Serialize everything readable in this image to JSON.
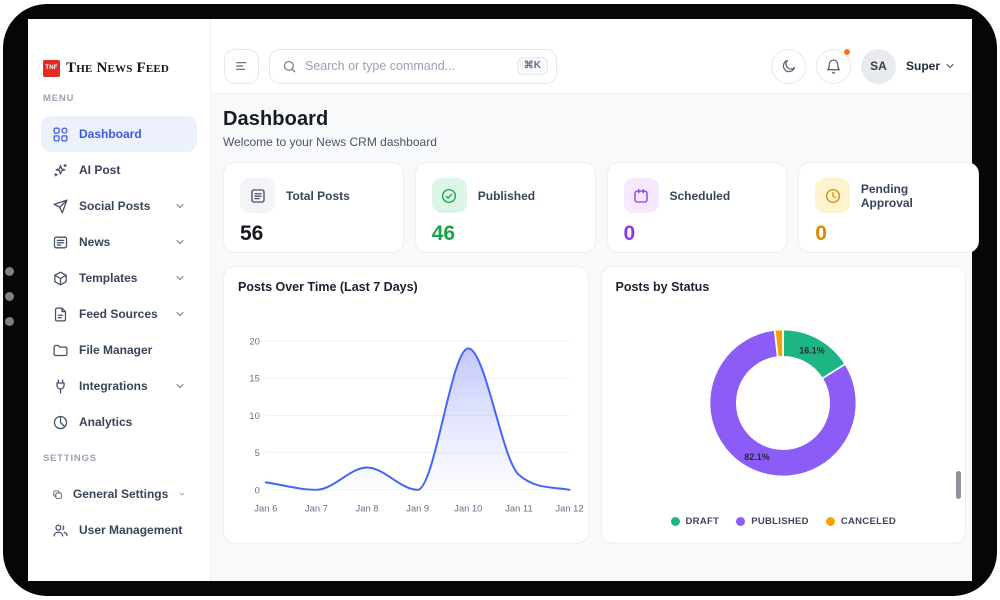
{
  "sidebar": {
    "logo": {
      "badge": "TNF",
      "title": "The News Feed"
    },
    "sections": [
      {
        "label": "MENU",
        "items": [
          {
            "label": "Dashboard",
            "icon": "grid",
            "active": true,
            "chevron": false
          },
          {
            "label": "AI Post",
            "icon": "sparkles",
            "active": false,
            "chevron": false
          },
          {
            "label": "Social Posts",
            "icon": "send",
            "active": false,
            "chevron": true
          },
          {
            "label": "News",
            "icon": "news",
            "active": false,
            "chevron": true
          },
          {
            "label": "Templates",
            "icon": "cube",
            "active": false,
            "chevron": true
          },
          {
            "label": "Feed Sources",
            "icon": "file",
            "active": false,
            "chevron": true
          },
          {
            "label": "File Manager",
            "icon": "folder",
            "active": false,
            "chevron": false
          },
          {
            "label": "Integrations",
            "icon": "plug",
            "active": false,
            "chevron": true
          },
          {
            "label": "Analytics",
            "icon": "pie",
            "active": false,
            "chevron": false
          }
        ]
      },
      {
        "label": "SETTINGS",
        "items": [
          {
            "label": "General Settings",
            "icon": "copy",
            "active": false,
            "chevron": true
          },
          {
            "label": "User Management",
            "icon": "users",
            "active": false,
            "chevron": false
          }
        ]
      }
    ]
  },
  "topbar": {
    "search_placeholder": "Search or type command...",
    "shortcut": "⌘K",
    "avatar_initials": "SA",
    "role_label": "Super",
    "notification_dot_color": "#f97316"
  },
  "page": {
    "title": "Dashboard",
    "subtitle": "Welcome to your News CRM dashboard"
  },
  "stats": [
    {
      "label": "Total Posts",
      "value": "56",
      "icon": "doc",
      "tile_bg": "#f2f4f7",
      "icon_color": "#45506a",
      "value_color": "#17191f"
    },
    {
      "label": "Published",
      "value": "46",
      "icon": "check-circle",
      "tile_bg": "#dcf5e7",
      "icon_color": "#17a34a",
      "value_color": "#17a34a"
    },
    {
      "label": "Scheduled",
      "value": "0",
      "icon": "calendar",
      "tile_bg": "#f5e8ff",
      "icon_color": "#9333ea",
      "value_color": "#9333ea"
    },
    {
      "label": "Pending Approval",
      "value": "0",
      "icon": "clock",
      "tile_bg": "#fdf3cf",
      "icon_color": "#d98a00",
      "value_color": "#d98a00"
    }
  ],
  "chart_data": [
    {
      "type": "line",
      "title": "Posts Over Time (Last 7 Days)",
      "x": [
        "Jan 6",
        "Jan 7",
        "Jan 8",
        "Jan 9",
        "Jan 10",
        "Jan 11",
        "Jan 12"
      ],
      "values": [
        1,
        0,
        3,
        0,
        19,
        2,
        0
      ],
      "ylim": [
        0,
        20
      ],
      "yticks": [
        0,
        5,
        10,
        15,
        20
      ],
      "grid": true,
      "line_color": "#4565f6",
      "fill_top": "rgba(110,122,246,0.42)",
      "fill_bottom": "rgba(140,150,250,0.02)"
    },
    {
      "type": "donut",
      "title": "Posts by Status",
      "slices": [
        {
          "label": "DRAFT",
          "pct": 16.1,
          "color": "#1db584",
          "show_label": true
        },
        {
          "label": "PUBLISHED",
          "pct": 82.1,
          "color": "#8b5cf6",
          "show_label": true
        },
        {
          "label": "CANCELED",
          "pct": 1.8,
          "color": "#f5a300",
          "show_label": false
        }
      ],
      "legend_position": "bottom"
    }
  ]
}
